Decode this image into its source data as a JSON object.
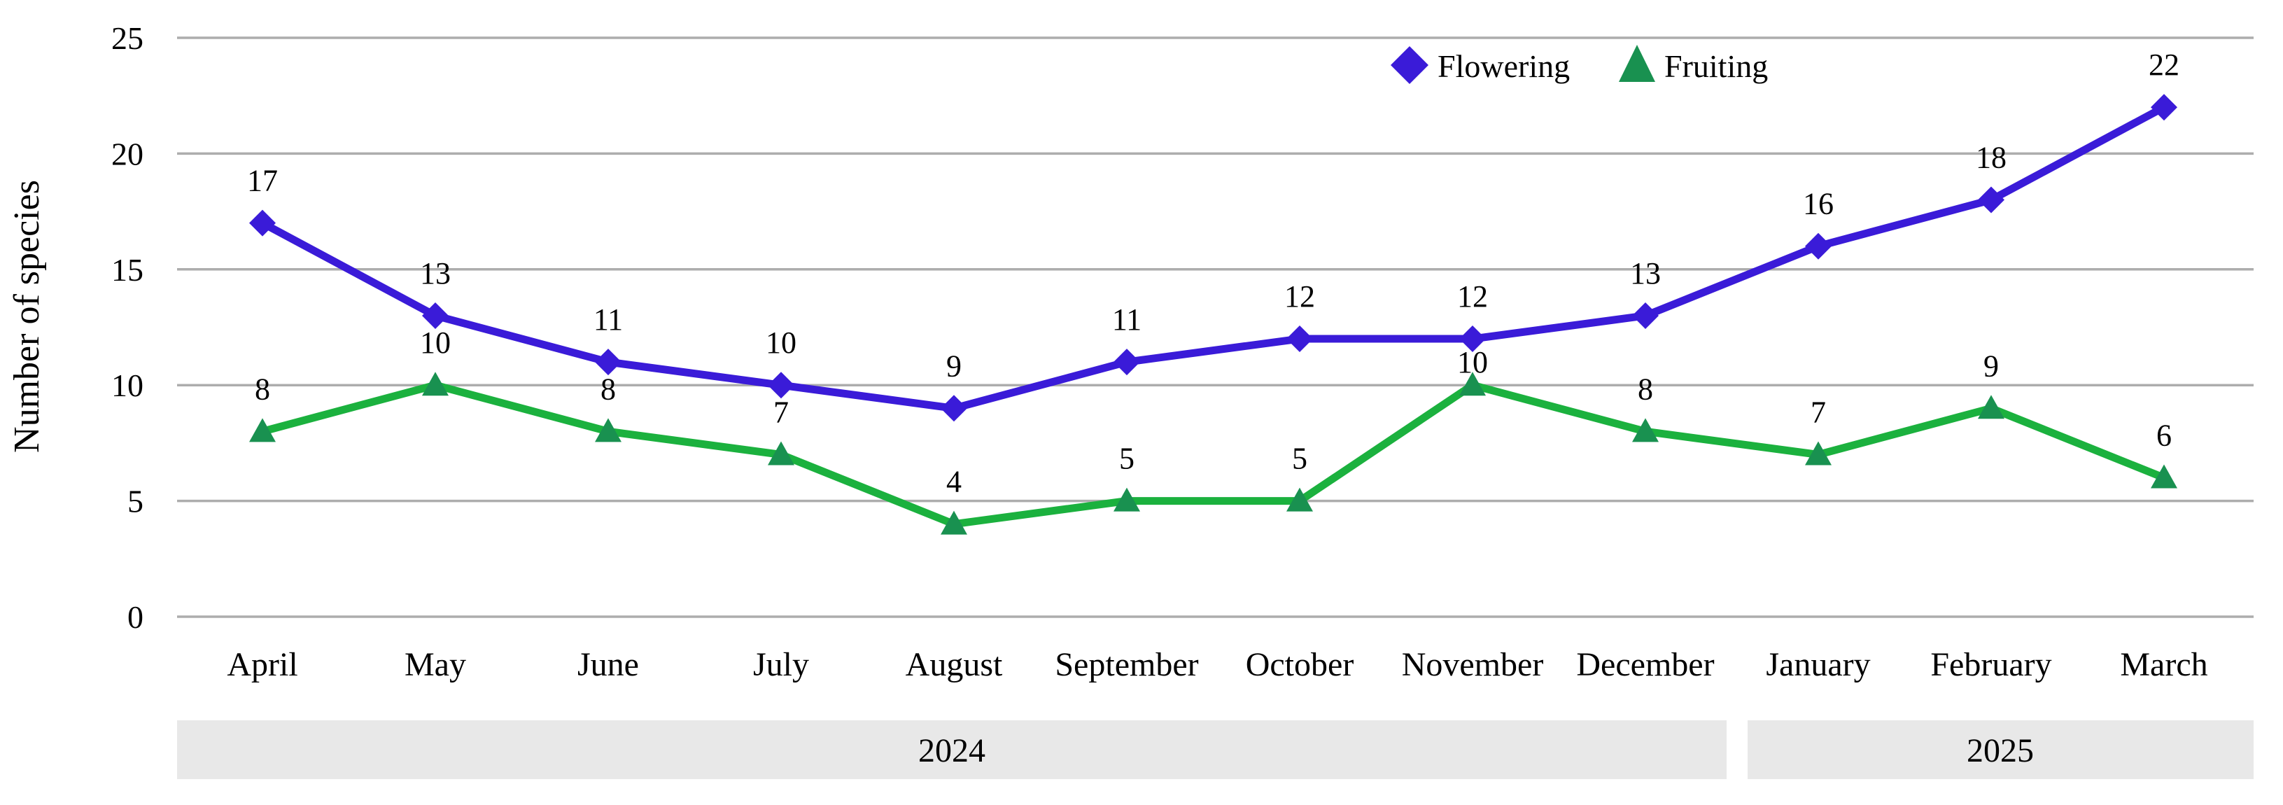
{
  "chart_data": {
    "type": "line",
    "title": "",
    "xlabel": "",
    "ylabel": "Number of species",
    "categories": [
      "April",
      "May",
      "June",
      "July",
      "August",
      "September",
      "October",
      "November",
      "December",
      "January",
      "February",
      "March"
    ],
    "yticks": [
      0,
      5,
      10,
      15,
      20,
      25
    ],
    "ylim": [
      0,
      25
    ],
    "grid": true,
    "legend_position": "top-right",
    "series": [
      {
        "name": "Flowering",
        "marker": "diamond",
        "line_color": "#3A1BD8",
        "marker_color": "#3A1BD8",
        "values": [
          17,
          13,
          11,
          10,
          9,
          11,
          12,
          12,
          13,
          16,
          18,
          22
        ]
      },
      {
        "name": "Fruiting",
        "marker": "triangle",
        "line_color": "#1BB13E",
        "marker_color": "#199150",
        "values": [
          8,
          10,
          8,
          7,
          4,
          5,
          5,
          10,
          8,
          7,
          9,
          6
        ]
      }
    ],
    "year_bands": [
      {
        "label": "2024",
        "months": [
          "April",
          "December"
        ]
      },
      {
        "label": "2025",
        "months": [
          "January",
          "March"
        ]
      }
    ]
  },
  "colors": {
    "gridline": "#ADADAD",
    "year_band_fill": "#E8E8E8",
    "text": "#000000",
    "background": "#FFFFFF"
  }
}
